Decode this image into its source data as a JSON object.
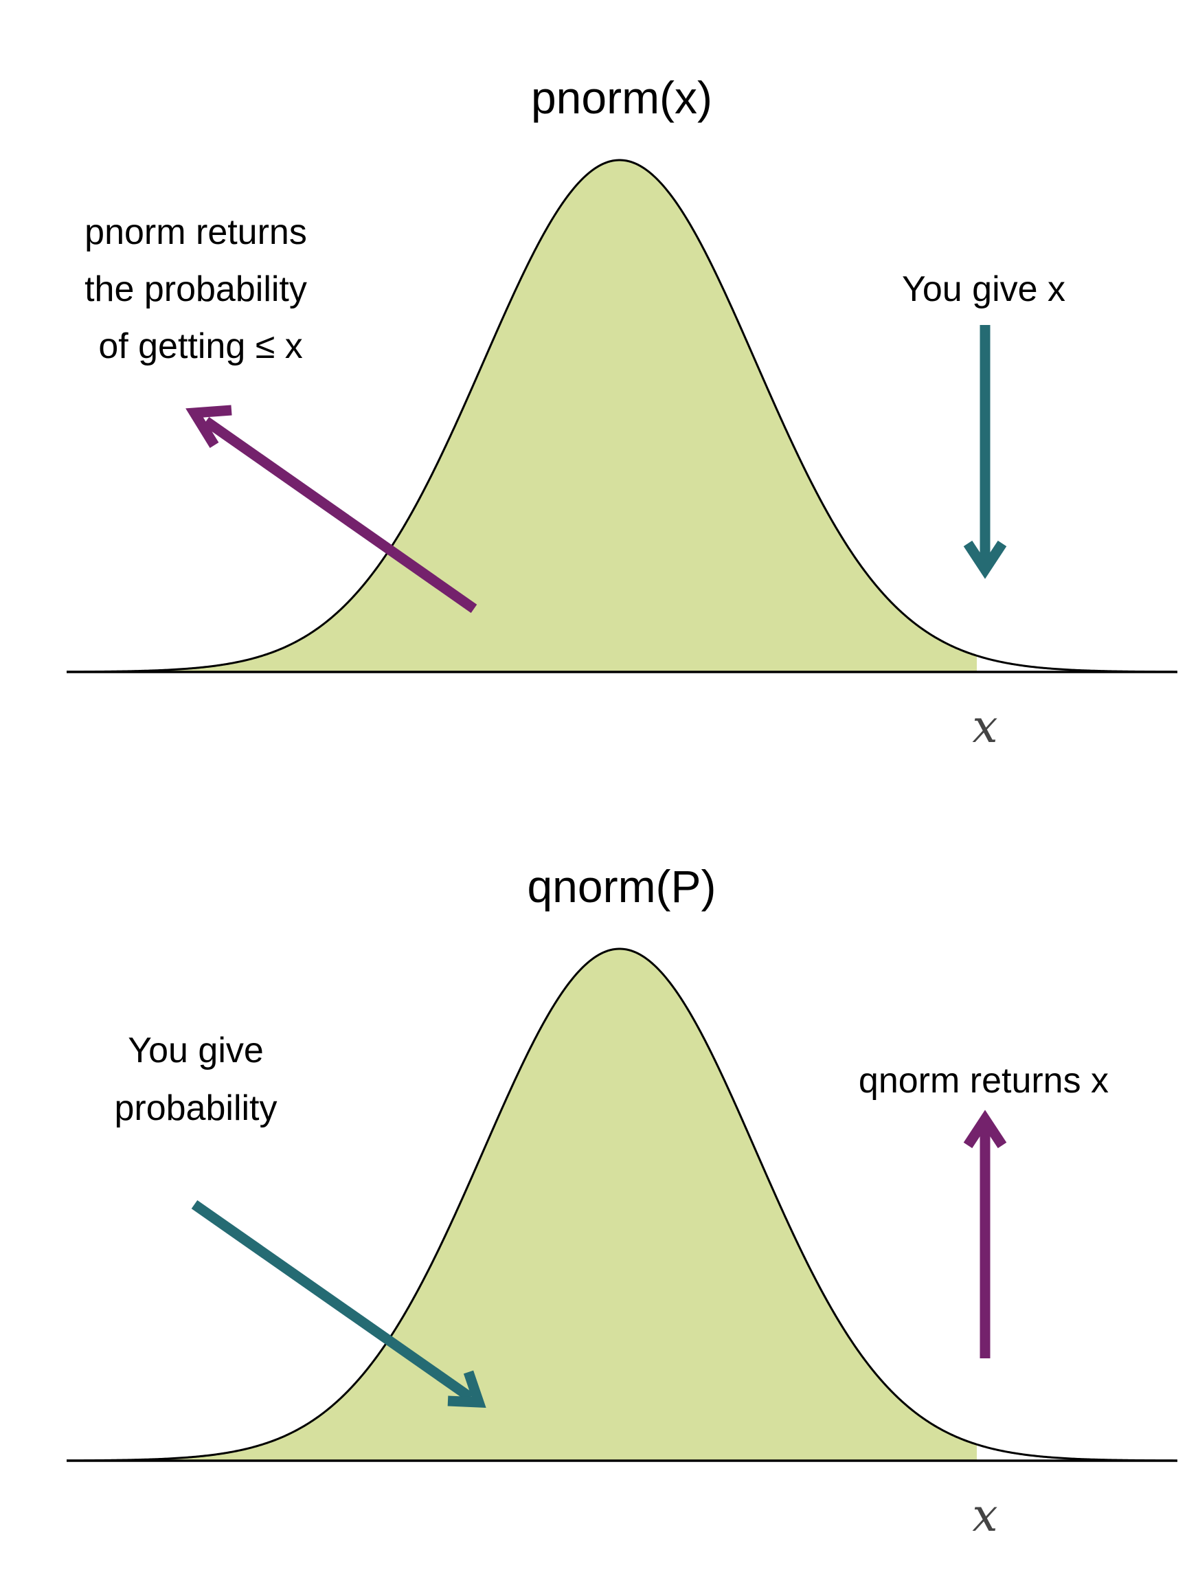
{
  "colors": {
    "fill": "#d6e09e",
    "curve": "#000000",
    "purple": "#74226c",
    "teal": "#256b73"
  },
  "panels": [
    {
      "title": "pnorm(x)",
      "left_annotation": [
        "pnorm returns",
        "the probability",
        "of getting ≤ x"
      ],
      "right_annotation": [
        "You give x"
      ],
      "axis_label": "x"
    },
    {
      "title": "qnorm(P)",
      "left_annotation": [
        "You give",
        "probability"
      ],
      "right_annotation": [
        "qnorm returns x"
      ],
      "axis_label": "x"
    }
  ]
}
